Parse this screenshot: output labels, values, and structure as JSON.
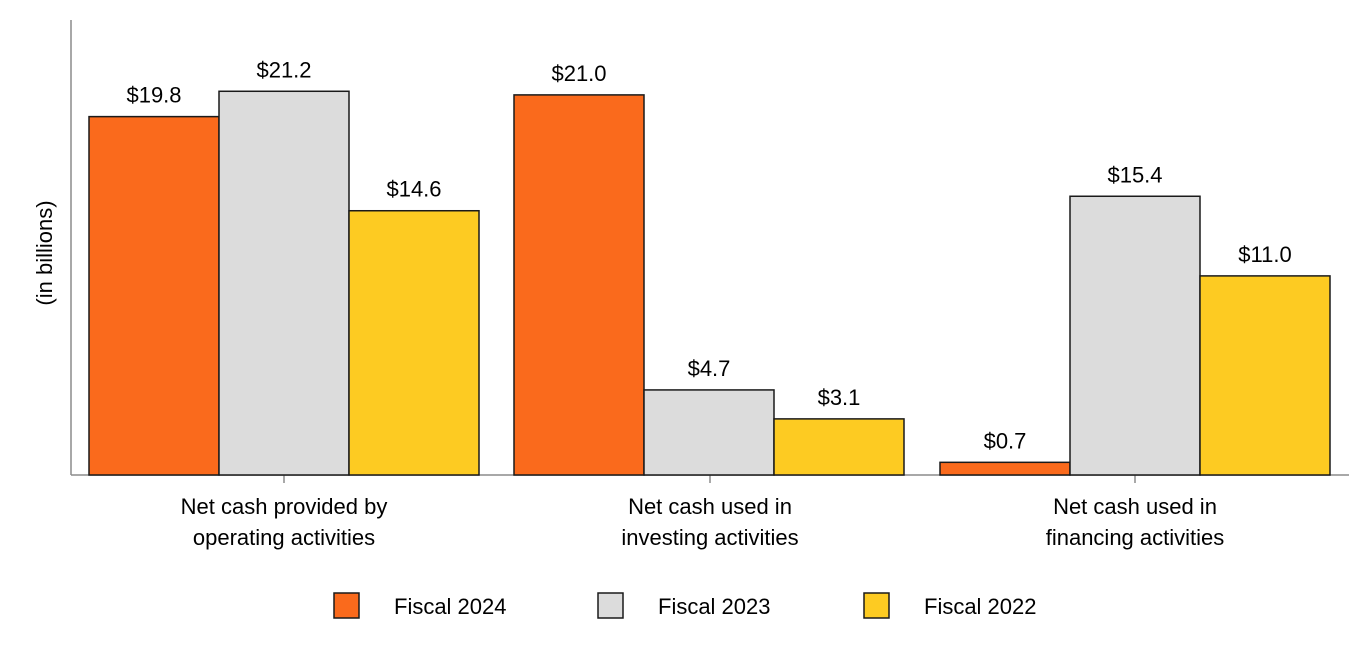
{
  "chart_data": {
    "type": "bar",
    "title": "",
    "xlabel": "",
    "ylabel": "(in billions)",
    "ylim": [
      0,
      23
    ],
    "grid": false,
    "legend_position": "bottom",
    "categories": [
      [
        "Net cash provided by",
        "operating activities"
      ],
      [
        "Net cash used in",
        "investing activities"
      ],
      [
        "Net cash used in",
        "financing activities"
      ]
    ],
    "series": [
      {
        "name": "Fiscal 2024",
        "color": "#FA6A1C",
        "values": [
          19.8,
          21.0,
          0.7
        ],
        "labels": [
          "$19.8",
          "$21.0",
          "$0.7"
        ]
      },
      {
        "name": "Fiscal 2023",
        "color": "#DCDCDC",
        "values": [
          21.2,
          4.7,
          15.4
        ],
        "labels": [
          "$21.2",
          "$4.7",
          "$15.4"
        ]
      },
      {
        "name": "Fiscal 2022",
        "color": "#FDCB22",
        "values": [
          14.6,
          3.1,
          11.0
        ],
        "labels": [
          "$14.6",
          "$3.1",
          "$11.0"
        ]
      }
    ]
  }
}
